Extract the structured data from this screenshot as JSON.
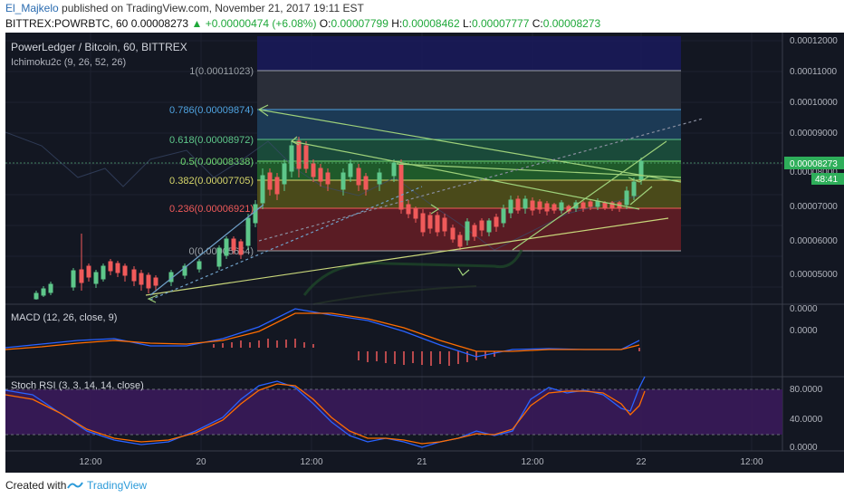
{
  "header": {
    "author": "El_Majkelo",
    "published_text": "published on TradingView.com, November 21, 2017 19:11 EST"
  },
  "quote": {
    "symbol": "BITTREX:POWRBTC, 60",
    "last": "0.00008273",
    "change_arrow": "▲",
    "change": "+0.00000474 (+6.08%)",
    "o_label": "O:",
    "o": "0.00007799",
    "h_label": "H:",
    "h": "0.00008462",
    "l_label": "L:",
    "l": "0.00007777",
    "c_label": "C:",
    "c": "0.00008273"
  },
  "panes": {
    "main": {
      "title": "PowerLedger / Bitcoin, 60, BITTREX",
      "indicator": "Ichimoku2c (9, 26, 52, 26)",
      "price_ticks": [
        "0.00012000",
        "0.00011000",
        "0.00010000",
        "0.00009000",
        "0.00008000",
        "0.00007000",
        "0.00006000",
        "0.00005000"
      ],
      "current_price": "0.00008273",
      "countdown": "48:41",
      "fib_levels": [
        {
          "label": "1(0.00011023)",
          "color": "#9aa0a6"
        },
        {
          "label": "0.786(0.00009874)",
          "color": "#4fa3e0"
        },
        {
          "label": "0.618(0.00008972)",
          "color": "#5ec78a"
        },
        {
          "label": "0.5(0.00008338)",
          "color": "#6fd46f"
        },
        {
          "label": "0.382(0.00007705)",
          "color": "#d6d66a"
        },
        {
          "label": "0.236(0.00006921)",
          "color": "#f05a5a"
        },
        {
          "label": "0(0.00005654)",
          "color": "#9aa0a6"
        }
      ]
    },
    "macd": {
      "title": "MACD (12, 26, close, 9)",
      "ticks": [
        "0.0000",
        "0.0000"
      ]
    },
    "stoch": {
      "title": "Stoch RSI (3, 3, 14, 14, close)",
      "ticks": [
        "80.0000",
        "40.0000",
        "0.0000"
      ]
    }
  },
  "time_axis": [
    "12:00",
    "20",
    "12:00",
    "21",
    "12:00",
    "22",
    "12:00"
  ],
  "footer": {
    "created": "Created with",
    "brand": "TradingView"
  },
  "colors": {
    "bg": "#131722",
    "up": "#5ec78a",
    "down": "#f05a5a",
    "accent": "#2b9ad9"
  }
}
